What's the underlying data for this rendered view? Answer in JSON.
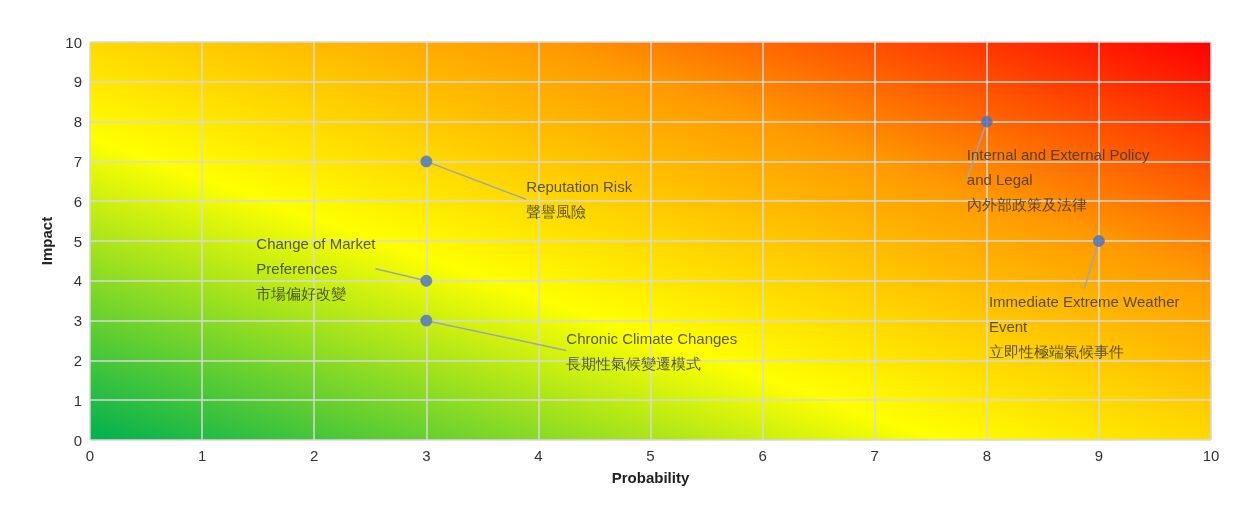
{
  "chart_data": {
    "type": "scatter",
    "xlabel": "Probability",
    "ylabel": "Impact",
    "x": [
      3,
      3,
      3,
      8,
      9
    ],
    "values": [
      7,
      4,
      3,
      8,
      5
    ],
    "color": "#4472c4",
    "marker": "circle",
    "xlim": [
      0,
      10
    ],
    "ylim": [
      0,
      10
    ],
    "xticks": [
      0,
      1,
      2,
      3,
      4,
      5,
      6,
      7,
      8,
      9,
      10
    ],
    "yticks": [
      0,
      1,
      2,
      3,
      4,
      5,
      6,
      7,
      8,
      9,
      10
    ],
    "grid": true,
    "annotations": [
      {
        "text": "Reputation Risk\n聲譽風險",
        "x": 3,
        "y": 7
      },
      {
        "text": "Change of Market\nPreferences\n市場偏好改變",
        "x": 3,
        "y": 4
      },
      {
        "text": "Chronic Climate Changes\n長期性氣候變遷模式",
        "x": 3,
        "y": 3
      },
      {
        "text": "Internal and External Policy\nand Legal\n內外部政策及法律",
        "x": 8,
        "y": 8
      },
      {
        "text": "Immediate Extreme Weather\nEvent\n立即性極端氣候事件",
        "x": 9,
        "y": 5
      }
    ]
  }
}
